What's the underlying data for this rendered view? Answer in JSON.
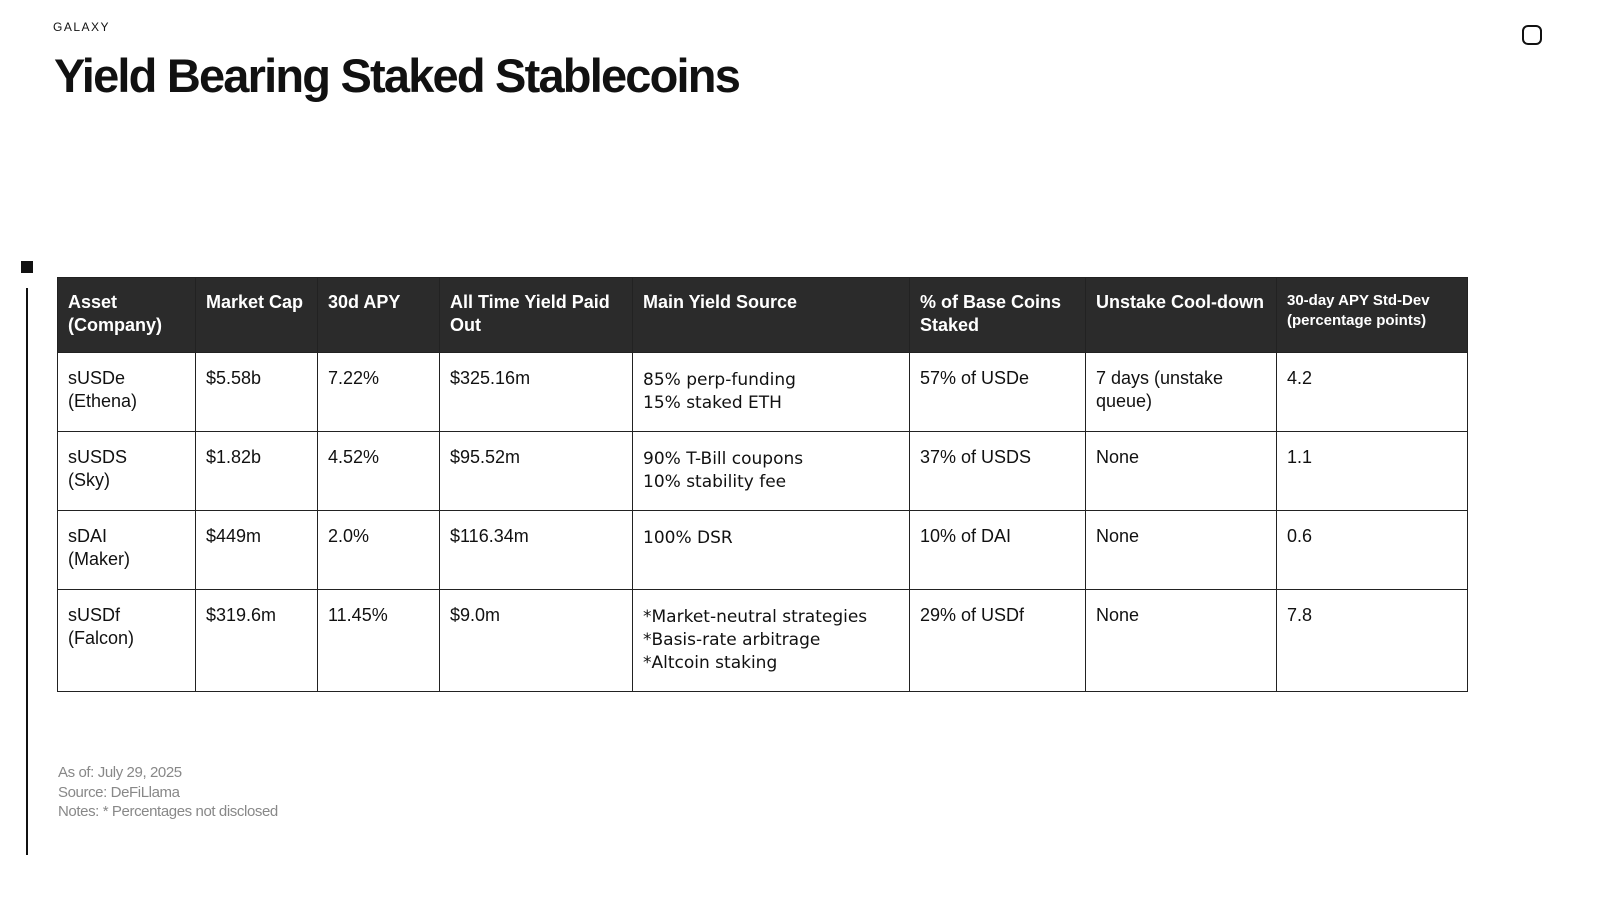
{
  "header": {
    "brand": "GALAXY",
    "title": "Yield Bearing Staked Stablecoins"
  },
  "table": {
    "columns": [
      [
        "Asset",
        "(Company)"
      ],
      [
        "Market Cap"
      ],
      [
        "30d APY"
      ],
      [
        "All Time Yield Paid",
        "Out"
      ],
      [
        "Main Yield Source"
      ],
      [
        "% of Base Coins",
        "Staked"
      ],
      [
        "Unstake Cool-down"
      ],
      [
        "30-day APY Std-Dev",
        "(percentage points)"
      ]
    ],
    "rows": [
      [
        [
          "sUSDe",
          "(Ethena)"
        ],
        [
          "$5.58b"
        ],
        [
          "7.22%"
        ],
        [
          "$325.16m"
        ],
        [
          "85% perp-funding",
          "15% staked ETH"
        ],
        [
          "57% of USDe"
        ],
        [
          "7 days (unstake",
          "queue)"
        ],
        [
          "4.2"
        ]
      ],
      [
        [
          "sUSDS",
          "(Sky)"
        ],
        [
          "$1.82b"
        ],
        [
          "4.52%"
        ],
        [
          "$95.52m"
        ],
        [
          "90% T-Bill coupons",
          "10% stability fee"
        ],
        [
          "37% of USDS"
        ],
        [
          "None"
        ],
        [
          "1.1"
        ]
      ],
      [
        [
          "sDAI",
          "(Maker)"
        ],
        [
          "$449m"
        ],
        [
          "2.0%"
        ],
        [
          "$116.34m"
        ],
        [
          "100% DSR"
        ],
        [
          "10% of DAI"
        ],
        [
          "None"
        ],
        [
          "0.6"
        ]
      ],
      [
        [
          "sUSDf",
          "(Falcon)"
        ],
        [
          "$319.6m"
        ],
        [
          "11.45%"
        ],
        [
          "$9.0m"
        ],
        [
          "*Market-neutral strategies",
          "*Basis-rate arbitrage",
          "*Altcoin staking"
        ],
        [
          "29% of USDf"
        ],
        [
          "None"
        ],
        [
          "7.8"
        ]
      ]
    ]
  },
  "footer": {
    "notes": [
      "As of: July 29, 2025",
      "Source: DeFiLlama",
      "Notes: * Percentages not disclosed"
    ]
  }
}
